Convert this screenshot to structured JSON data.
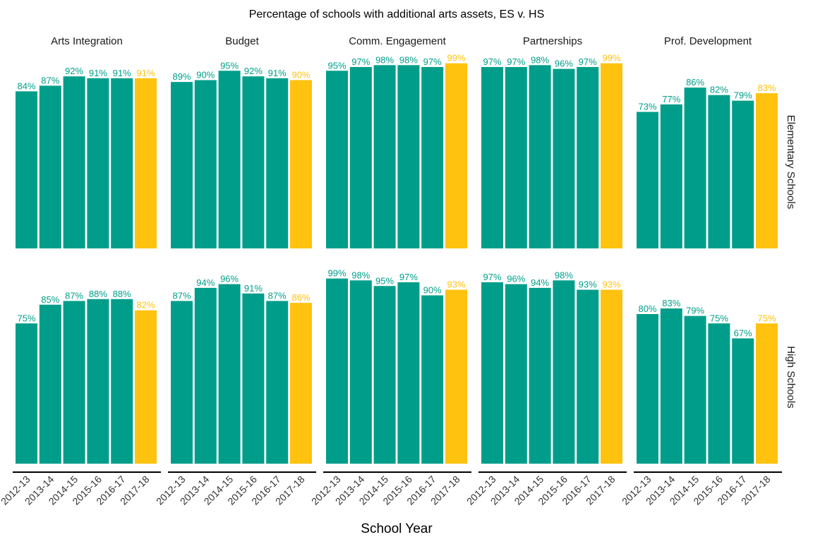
{
  "chart_data": {
    "type": "bar",
    "title": "Percentage of schools with additional arts assets, ES v. HS",
    "xlabel": "School Year",
    "ylabel": "",
    "ylim": [
      0,
      100
    ],
    "grid": false,
    "categories": [
      "2012-13",
      "2013-14",
      "2014-15",
      "2015-16",
      "2016-17",
      "2017-18"
    ],
    "colors": {
      "default": "#009E8A",
      "highlight": "#FFC20E"
    },
    "highlight_category": "2017-18",
    "facet_columns": [
      "Arts Integration",
      "Budget",
      "Comm. Engagement",
      "Partnerships",
      "Prof. Development"
    ],
    "facet_rows": [
      "Elementary Schools",
      "High Schools"
    ],
    "panels": [
      {
        "row": "Elementary Schools",
        "column": "Arts Integration",
        "values": [
          84,
          87,
          92,
          91,
          91,
          91
        ],
        "labels": [
          "84%",
          "87%",
          "92%",
          "91%",
          "91%",
          "91%"
        ]
      },
      {
        "row": "Elementary Schools",
        "column": "Budget",
        "values": [
          89,
          90,
          95,
          92,
          91,
          90
        ],
        "labels": [
          "89%",
          "90%",
          "95%",
          "92%",
          "91%",
          "90%"
        ]
      },
      {
        "row": "Elementary Schools",
        "column": "Comm. Engagement",
        "values": [
          95,
          97,
          98,
          98,
          97,
          99
        ],
        "labels": [
          "95%",
          "97%",
          "98%",
          "98%",
          "97%",
          "99%"
        ]
      },
      {
        "row": "Elementary Schools",
        "column": "Partnerships",
        "values": [
          97,
          97,
          98,
          96,
          97,
          99
        ],
        "labels": [
          "97%",
          "97%",
          "98%",
          "96%",
          "97%",
          "99%"
        ]
      },
      {
        "row": "Elementary Schools",
        "column": "Prof. Development",
        "values": [
          73,
          77,
          86,
          82,
          79,
          83
        ],
        "labels": [
          "73%",
          "77%",
          "86%",
          "82%",
          "79%",
          "83%"
        ]
      },
      {
        "row": "High Schools",
        "column": "Arts Integration",
        "values": [
          75,
          85,
          87,
          88,
          88,
          82
        ],
        "labels": [
          "75%",
          "85%",
          "87%",
          "88%",
          "88%",
          "82%"
        ]
      },
      {
        "row": "High Schools",
        "column": "Budget",
        "values": [
          87,
          94,
          96,
          91,
          87,
          86
        ],
        "labels": [
          "87%",
          "94%",
          "96%",
          "91%",
          "87%",
          "86%"
        ]
      },
      {
        "row": "High Schools",
        "column": "Comm. Engagement",
        "values": [
          99,
          98,
          95,
          97,
          90,
          93
        ],
        "labels": [
          "99%",
          "98%",
          "95%",
          "97%",
          "90%",
          "93%"
        ]
      },
      {
        "row": "High Schools",
        "column": "Partnerships",
        "values": [
          97,
          96,
          94,
          98,
          93,
          93
        ],
        "labels": [
          "97%",
          "96%",
          "94%",
          "98%",
          "93%",
          "93%"
        ]
      },
      {
        "row": "High Schools",
        "column": "Prof. Development",
        "values": [
          80,
          83,
          79,
          75,
          67,
          75
        ],
        "labels": [
          "80%",
          "83%",
          "79%",
          "75%",
          "67%",
          "75%"
        ]
      }
    ]
  }
}
